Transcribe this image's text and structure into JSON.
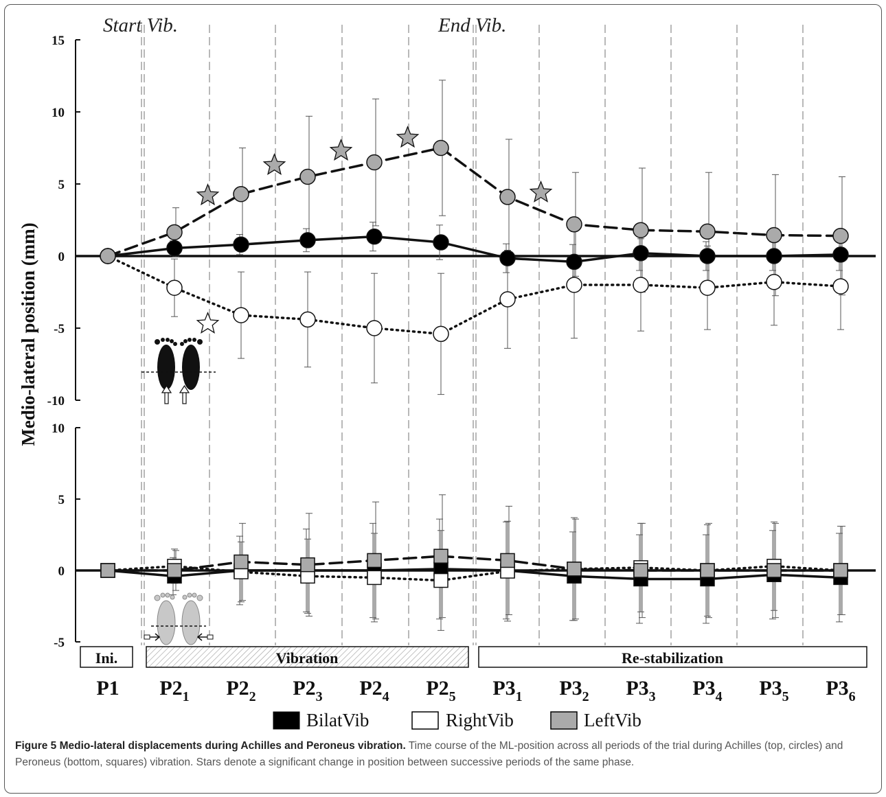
{
  "chart_data": [
    {
      "type": "line",
      "panel": "top",
      "annotations": {
        "start": "Start Vib.",
        "end": "End Vib."
      },
      "ylabel": "Medio-lateral position (mm)",
      "ylim": [
        -10,
        15
      ],
      "yticks": [
        "15",
        "10",
        "5",
        "0",
        "-5",
        "-10"
      ],
      "x": [
        "P1",
        "P2_1",
        "P2_2",
        "P2_3",
        "P2_4",
        "P2_5",
        "P3_1",
        "P3_2",
        "P3_3",
        "P3_4",
        "P3_5",
        "P3_6"
      ],
      "series": [
        {
          "name": "BilatVib",
          "marker": "circle",
          "style": "solid",
          "fill": "#000000",
          "values": [
            0,
            0.55,
            0.8,
            1.1,
            1.35,
            0.95,
            -0.15,
            -0.4,
            0.2,
            0.0,
            0.0,
            0.1
          ],
          "err": [
            0,
            0.5,
            0.7,
            0.8,
            1.0,
            1.2,
            1.0,
            1.2,
            1.2,
            1.0,
            1.0,
            1.1
          ]
        },
        {
          "name": "RightVib",
          "marker": "circle",
          "style": "dotted",
          "fill": "#ffffff",
          "values": [
            0,
            -2.2,
            -4.1,
            -4.4,
            -5.0,
            -5.4,
            -3.0,
            -2.0,
            -2.0,
            -2.2,
            -1.8,
            -2.1
          ],
          "err": [
            0,
            2.0,
            3.0,
            3.3,
            3.8,
            4.2,
            3.4,
            3.7,
            3.2,
            2.9,
            3.0,
            3.0
          ]
        },
        {
          "name": "LeftVib",
          "marker": "circle",
          "style": "dashed",
          "fill": "#aaaaaa",
          "values": [
            0,
            1.65,
            4.3,
            5.5,
            6.5,
            7.5,
            4.1,
            2.2,
            1.8,
            1.7,
            1.45,
            1.4
          ],
          "err": [
            0,
            1.7,
            3.2,
            4.2,
            4.4,
            4.7,
            4.0,
            3.6,
            4.3,
            4.1,
            4.2,
            4.1
          ]
        }
      ],
      "stars": [
        {
          "between": [
            1,
            2
          ],
          "y": 4.2,
          "fill": "#aaaaaa"
        },
        {
          "between": [
            2,
            3
          ],
          "y": 6.3,
          "fill": "#aaaaaa"
        },
        {
          "between": [
            3,
            4
          ],
          "y": 7.3,
          "fill": "#aaaaaa"
        },
        {
          "between": [
            4,
            5
          ],
          "y": 8.2,
          "fill": "#aaaaaa"
        },
        {
          "between": [
            6,
            7
          ],
          "y": 4.4,
          "fill": "#aaaaaa"
        },
        {
          "between": [
            1,
            2
          ],
          "y": -4.7,
          "fill": "#ffffff"
        }
      ]
    },
    {
      "type": "line",
      "panel": "bottom",
      "ylim": [
        -5,
        10
      ],
      "yticks": [
        "10",
        "5",
        "0",
        "-5"
      ],
      "x": [
        "P1",
        "P2_1",
        "P2_2",
        "P2_3",
        "P2_4",
        "P2_5",
        "P3_1",
        "P3_2",
        "P3_3",
        "P3_4",
        "P3_5",
        "P3_6"
      ],
      "series": [
        {
          "name": "BilatVib",
          "marker": "square",
          "style": "solid",
          "fill": "#000000",
          "values": [
            0,
            -0.4,
            0.0,
            0.0,
            0.0,
            0.1,
            0.0,
            -0.4,
            -0.6,
            -0.6,
            -0.3,
            -0.5
          ],
          "err": [
            0,
            1.3,
            2.4,
            2.9,
            3.3,
            3.5,
            3.4,
            3.1,
            3.1,
            3.1,
            3.1,
            3.1
          ]
        },
        {
          "name": "RightVib",
          "marker": "square",
          "style": "dotted",
          "fill": "#ffffff",
          "values": [
            0,
            0.3,
            -0.1,
            -0.4,
            -0.5,
            -0.7,
            -0.05,
            0.1,
            0.2,
            0.0,
            0.3,
            0.0
          ],
          "err": [
            0,
            1.2,
            2.1,
            2.6,
            3.1,
            3.5,
            3.5,
            3.6,
            3.1,
            3.2,
            3.1,
            3.1
          ]
        },
        {
          "name": "LeftVib",
          "marker": "square",
          "style": "dashed",
          "fill": "#aaaaaa",
          "values": [
            0,
            0.0,
            0.6,
            0.4,
            0.7,
            1.0,
            0.7,
            0.1,
            0.0,
            0.0,
            0.0,
            0.0
          ],
          "err": [
            0,
            1.4,
            2.7,
            3.6,
            4.1,
            4.3,
            3.8,
            3.5,
            3.3,
            3.3,
            3.3,
            3.1
          ]
        }
      ]
    }
  ],
  "phases": {
    "ini": "Ini.",
    "vibration": "Vibration",
    "restab": "Re-stabilization"
  },
  "xlabels": [
    {
      "base": "P1",
      "sub": ""
    },
    {
      "base": "P2",
      "sub": "1"
    },
    {
      "base": "P2",
      "sub": "2"
    },
    {
      "base": "P2",
      "sub": "3"
    },
    {
      "base": "P2",
      "sub": "4"
    },
    {
      "base": "P2",
      "sub": "5"
    },
    {
      "base": "P3",
      "sub": "1"
    },
    {
      "base": "P3",
      "sub": "2"
    },
    {
      "base": "P3",
      "sub": "3"
    },
    {
      "base": "P3",
      "sub": "4"
    },
    {
      "base": "P3",
      "sub": "5"
    },
    {
      "base": "P3",
      "sub": "6"
    }
  ],
  "legend": [
    {
      "label": "BilatVib",
      "color": "#000000"
    },
    {
      "label": "RightVib",
      "color": "#ffffff"
    },
    {
      "label": "LeftVib",
      "color": "#aaaaaa"
    }
  ],
  "caption": {
    "title": "Figure 5 Medio-lateral displacements during Achilles and Peroneus vibration.",
    "text": "Time course of the ML-position across all periods of the trial during Achilles (top, circles) and Peroneus (bottom, squares) vibration. Stars denote a significant change in position between successive periods of the same phase."
  }
}
